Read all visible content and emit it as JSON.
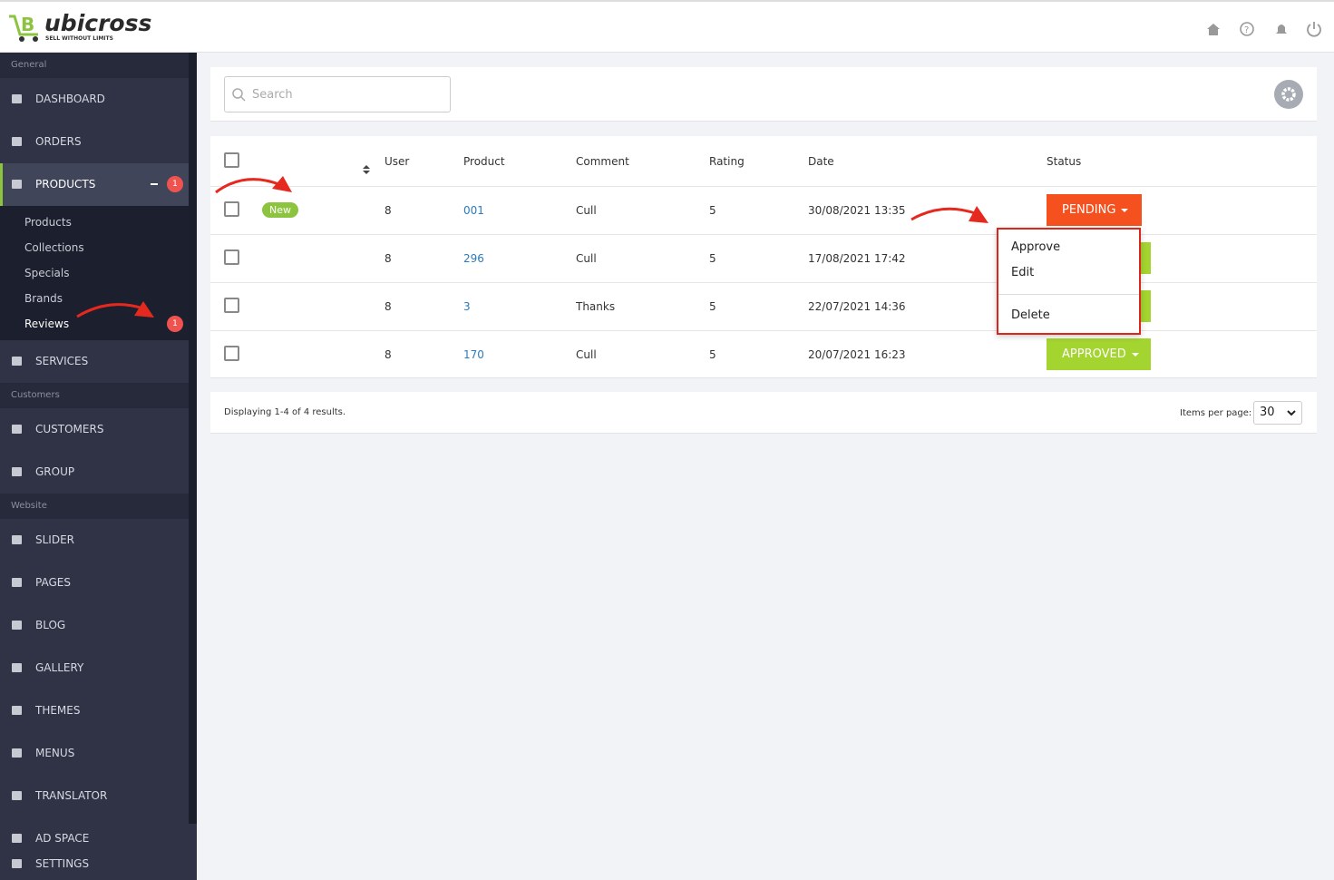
{
  "brand": {
    "name": "ubicross",
    "tagline": "SELL WITHOUT LIMITS"
  },
  "sidebar": {
    "groups": [
      {
        "title": "General",
        "items": [
          {
            "label": "DASHBOARD"
          },
          {
            "label": "ORDERS"
          },
          {
            "label": "PRODUCTS",
            "badge": 1,
            "sub": [
              {
                "label": "Products"
              },
              {
                "label": "Collections"
              },
              {
                "label": "Specials"
              },
              {
                "label": "Brands"
              },
              {
                "label": "Reviews",
                "badge": 1
              }
            ]
          },
          {
            "label": "SERVICES"
          }
        ]
      },
      {
        "title": "Customers",
        "items": [
          {
            "label": "CUSTOMERS"
          },
          {
            "label": "GROUP"
          }
        ]
      },
      {
        "title": "Website",
        "items": [
          {
            "label": "SLIDER"
          },
          {
            "label": "PAGES"
          },
          {
            "label": "BLOG"
          },
          {
            "label": "GALLERY"
          },
          {
            "label": "THEMES"
          },
          {
            "label": "MENUS"
          },
          {
            "label": "TRANSLATOR"
          },
          {
            "label": "AD SPACE"
          }
        ]
      }
    ],
    "settings": "SETTINGS"
  },
  "search": {
    "placeholder": "Search"
  },
  "table": {
    "headers": [
      "User",
      "Product",
      "Comment",
      "Rating",
      "Date",
      "Status"
    ],
    "rows": [
      {
        "tag": "New",
        "user": 8,
        "product": "001",
        "comment": "Cull",
        "rating": 5,
        "date": "30/08/2021 13:35",
        "status": "PENDING"
      },
      {
        "user": 8,
        "product": "296",
        "comment": "Cull",
        "rating": 5,
        "date": "17/08/2021 17:42"
      },
      {
        "user": 8,
        "product": "3",
        "comment": "Thanks",
        "rating": 5,
        "date": "22/07/2021 14:36"
      },
      {
        "user": 8,
        "product": "170",
        "comment": "Cull",
        "rating": 5,
        "date": "20/07/2021 16:23",
        "status": "APPROVED"
      }
    ]
  },
  "dropdown": {
    "items": [
      "Approve",
      "Edit",
      "Delete"
    ]
  },
  "footer": {
    "summary": "Displaying 1-4 of 4 results.",
    "per_page_label": "Items per page:",
    "per_page": 30
  }
}
